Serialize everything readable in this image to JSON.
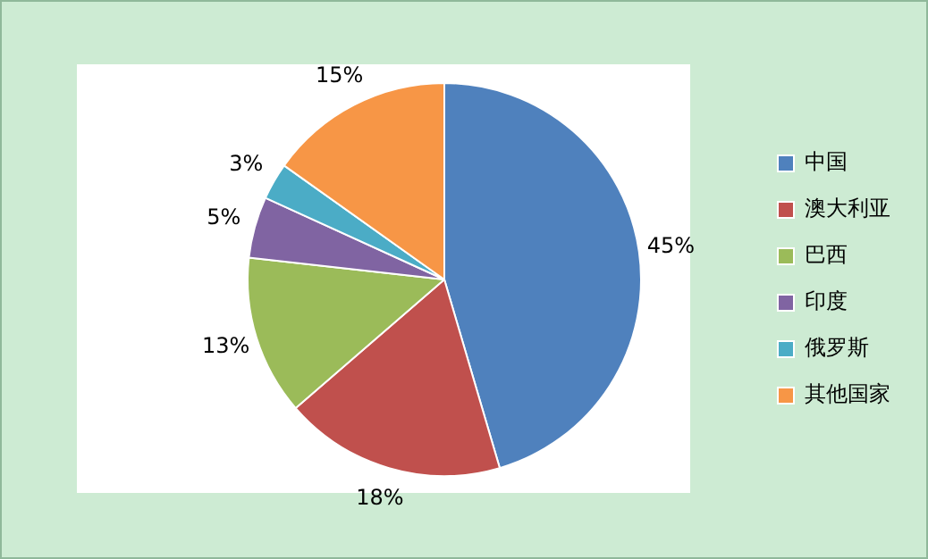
{
  "chart_data": {
    "type": "pie",
    "categories": [
      "中国",
      "澳大利亚",
      "巴西",
      "印度",
      "俄罗斯",
      "其他国家"
    ],
    "values": [
      45,
      18,
      13,
      5,
      3,
      15
    ],
    "value_labels": [
      "45%",
      "18%",
      "13%",
      "5%",
      "3%",
      "15%"
    ],
    "colors": [
      "#4f81bd",
      "#c0504d",
      "#9bbb59",
      "#8064a2",
      "#4bacc6",
      "#f79646"
    ],
    "legend": "right"
  }
}
